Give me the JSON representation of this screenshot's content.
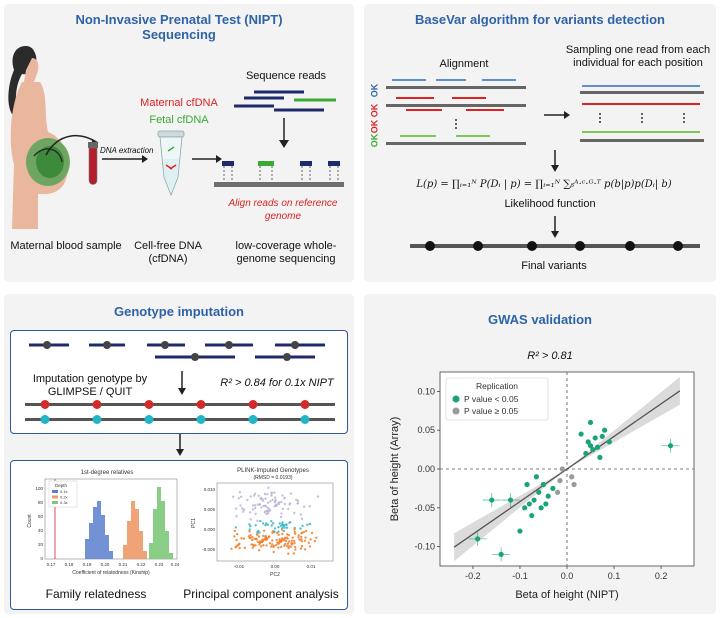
{
  "nipt": {
    "title_line1": "Non-Invasive Prenatal Test (NIPT)",
    "title_line2": "Sequencing",
    "sequence_reads": "Sequence reads",
    "maternal_cfdna": "Maternal cfDNA",
    "fetal_cfdna": "Fetal cfDNA",
    "dna_extraction": "DNA extraction",
    "align_reads": "Align reads on reference genome",
    "maternal_blood": "Maternal blood sample",
    "cfdna_line1": "Cell-free DNA",
    "cfdna_line2": "(cfDNA)",
    "lowcov_line1": "low-coverage whole-",
    "lowcov_line2": "genome sequencing"
  },
  "basevar": {
    "title": "BaseVar algorithm for variants detection",
    "alignment": "Alignment",
    "sampling_line1": "Sampling one read from each",
    "sampling_line2": "individual for each position",
    "formula": "L(p) = ∏ᵢ₌₁ᴺ P(Dᵢ | p) = ∏ᵢ₌₁ᴺ ∑ᵦᴬ·ᶜ·ᴳ·ᵀ p(b|p)p(Dᵢ| b)",
    "likelihood": "Likelihood function",
    "final_variants": "Final  variants",
    "ok_labels": [
      "OK",
      "OK",
      "OK",
      "OK"
    ]
  },
  "imputation": {
    "title": "Genotype imputation",
    "imputation_line1": "Imputation genotype by",
    "imputation_line2": "GLIMPSE / QUIT",
    "r2_text": "R² > 0.84 for 0.1x NIPT",
    "family": "Family relatedness",
    "pca": "Principal component analysis",
    "hist_title": "1st-degree relatives",
    "hist_legend_title": "Depth",
    "hist_legend": [
      "0.1x",
      "0.2x",
      "0.3x"
    ],
    "hist_xlabel": "Coefficient of relatedness (Kinship)",
    "hist_ylabel": "Count",
    "hist_xticks": [
      "0.17",
      "0.18",
      "0.19",
      "0.20",
      "0.21",
      "0.22",
      "0.23",
      "0.24"
    ],
    "hist_yticks": [
      "0",
      "20",
      "40",
      "60",
      "80",
      "100"
    ],
    "pca_title": "PLINK-Imputed Genotypes",
    "pca_subtitle": "(RMSD = 0.0193)",
    "pca_xlabel": "PC2",
    "pca_ylabel": "PC1",
    "pca_xticks": [
      "-0.01",
      "0.00",
      "0.01"
    ],
    "pca_yticks": [
      "0.010",
      "0.005",
      "0.000",
      "-0.005"
    ]
  },
  "gwas": {
    "title": "GWAS validation",
    "r2": "R² > 0.81",
    "legend_title": "Replication",
    "legend_items": [
      "P value < 0.05",
      "P value ≥ 0.05"
    ],
    "xlabel": "Beta of height (NIPT)",
    "ylabel": "Beta of height (Array)",
    "xticks": [
      "-0.2",
      "-0.1",
      "0.0",
      "0.1",
      "0.2"
    ],
    "yticks": [
      "0.10",
      "0.05",
      "0.00",
      "-0.05",
      "-0.10"
    ],
    "colors": {
      "significant": "#1aa37a",
      "nonsignificant": "#9a9a9a",
      "fit": "#555555"
    }
  },
  "chart_data": {
    "type": "scatter",
    "xlabel": "Beta of height (NIPT)",
    "ylabel": "Beta of height (Array)",
    "xlim": [
      -0.27,
      0.27
    ],
    "ylim": [
      -0.125,
      0.125
    ],
    "series": [
      {
        "name": "P value < 0.05",
        "points": [
          [
            0.22,
            0.03
          ],
          [
            -0.16,
            -0.04
          ],
          [
            -0.14,
            -0.11
          ],
          [
            -0.19,
            -0.09
          ],
          [
            -0.1,
            -0.08
          ],
          [
            -0.12,
            -0.04
          ],
          [
            0.05,
            0.03
          ],
          [
            0.06,
            0.04
          ],
          [
            0.08,
            0.05
          ],
          [
            0.04,
            0.02
          ],
          [
            0.07,
            0.015
          ],
          [
            0.05,
            0.06
          ],
          [
            0.03,
            0.045
          ],
          [
            0.09,
            0.035
          ],
          [
            0.055,
            0.025
          ],
          [
            -0.06,
            -0.03
          ],
          [
            -0.05,
            -0.02
          ],
          [
            -0.07,
            -0.04
          ],
          [
            -0.04,
            -0.035
          ],
          [
            -0.08,
            -0.045
          ],
          [
            -0.055,
            -0.05
          ],
          [
            -0.03,
            -0.025
          ],
          [
            -0.065,
            -0.01
          ],
          [
            -0.045,
            -0.045
          ],
          [
            -0.085,
            -0.02
          ],
          [
            0.045,
            0.035
          ],
          [
            0.065,
            0.028
          ],
          [
            0.075,
            0.042
          ],
          [
            -0.075,
            -0.06
          ],
          [
            -0.09,
            -0.05
          ]
        ]
      },
      {
        "name": "P value ≥ 0.05",
        "points": [
          [
            -0.02,
            -0.03
          ],
          [
            0.01,
            -0.01
          ],
          [
            -0.01,
            0.0
          ],
          [
            0.015,
            -0.02
          ],
          [
            -0.015,
            -0.015
          ]
        ]
      }
    ]
  }
}
